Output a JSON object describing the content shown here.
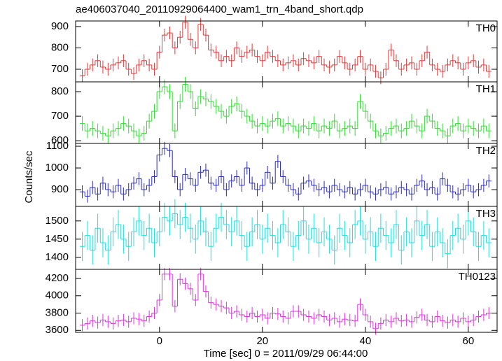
{
  "chart_data": {
    "type": "step",
    "title": "ae406037040_20110929064400_wam1_trn_4band_short.qdp",
    "x_label": "Time [sec] 0 = 2011/09/29 06:44:00",
    "y_label": "Counts/sec",
    "x": [
      -15,
      -14,
      -13,
      -12,
      -11,
      -10,
      -9,
      -8,
      -7,
      -6,
      -5,
      -4,
      -3,
      -2,
      -1,
      0,
      1,
      2,
      3,
      4,
      5,
      6,
      7,
      8,
      9,
      10,
      11,
      12,
      13,
      14,
      15,
      16,
      17,
      18,
      19,
      20,
      21,
      22,
      23,
      24,
      25,
      26,
      27,
      28,
      29,
      30,
      31,
      32,
      33,
      34,
      35,
      36,
      37,
      38,
      39,
      40,
      41,
      42,
      43,
      44,
      45,
      46,
      47,
      48,
      49,
      50,
      51,
      52,
      53,
      54,
      55,
      56,
      57,
      58,
      59,
      60,
      61,
      62,
      63,
      64
    ],
    "xlim": [
      -16.3,
      65.6
    ],
    "xticks": [
      0,
      20,
      40,
      60
    ],
    "panels": [
      {
        "name": "TH0",
        "color": "#e03a3a",
        "error": 30,
        "ylim": [
          641,
          926
        ],
        "yticks": [
          700,
          800,
          900
        ],
        "values": [
          670,
          700,
          720,
          740,
          710,
          700,
          720,
          730,
          740,
          700,
          680,
          720,
          740,
          720,
          700,
          780,
          860,
          870,
          800,
          850,
          920,
          840,
          800,
          910,
          860,
          790,
          780,
          740,
          760,
          740,
          800,
          760,
          780,
          790,
          760,
          740,
          780,
          760,
          740,
          720,
          730,
          740,
          720,
          750,
          740,
          730,
          760,
          720,
          710,
          720,
          760,
          730,
          700,
          720,
          760,
          700,
          720,
          690,
          660,
          700,
          790,
          740,
          700,
          720,
          730,
          700,
          740,
          780,
          720,
          700,
          690,
          720,
          740,
          730,
          700,
          730,
          740,
          710,
          720,
          690
        ]
      },
      {
        "name": "TH1",
        "color": "#33dd33",
        "error": 30,
        "ylim": [
          589,
          840
        ],
        "yticks": [
          600,
          700,
          800
        ],
        "values": [
          670,
          640,
          650,
          640,
          630,
          620,
          640,
          650,
          670,
          660,
          640,
          620,
          630,
          680,
          720,
          800,
          820,
          800,
          640,
          760,
          830,
          800,
          730,
          780,
          770,
          760,
          740,
          720,
          700,
          740,
          750,
          720,
          700,
          680,
          660,
          670,
          660,
          680,
          690,
          660,
          670,
          660,
          640,
          660,
          650,
          670,
          640,
          660,
          650,
          680,
          640,
          650,
          660,
          650,
          760,
          720,
          680,
          640,
          620,
          630,
          650,
          660,
          640,
          650,
          680,
          660,
          640,
          700,
          680,
          650,
          640,
          620,
          660,
          670,
          640,
          660,
          650,
          640,
          660,
          640
        ]
      },
      {
        "name": "TH2",
        "color": "#2a2ac0",
        "error": 30,
        "ylim": [
          823,
          1113
        ],
        "yticks": [
          900,
          1000,
          1100
        ],
        "values": [
          890,
          870,
          910,
          880,
          930,
          900,
          890,
          920,
          880,
          900,
          930,
          950,
          900,
          920,
          960,
          1060,
          1090,
          1080,
          960,
          900,
          970,
          950,
          920,
          980,
          990,
          930,
          920,
          960,
          900,
          940,
          960,
          920,
          1000,
          930,
          900,
          920,
          980,
          930,
          1030,
          960,
          920,
          900,
          880,
          930,
          940,
          920,
          900,
          910,
          890,
          920,
          900,
          890,
          910,
          880,
          900,
          920,
          890,
          880,
          900,
          910,
          880,
          890,
          910,
          900,
          880,
          920,
          940,
          900,
          910,
          880,
          950,
          920,
          890,
          880,
          900,
          920,
          890,
          900,
          920,
          940
        ]
      },
      {
        "name": "TH3",
        "color": "#22dddd",
        "error": 40,
        "ylim": [
          1367,
          1540
        ],
        "yticks": [
          1400,
          1450,
          1500
        ],
        "values": [
          1430,
          1460,
          1420,
          1480,
          1440,
          1420,
          1470,
          1490,
          1450,
          1430,
          1470,
          1500,
          1460,
          1480,
          1440,
          1470,
          1510,
          1500,
          1520,
          1490,
          1510,
          1480,
          1450,
          1500,
          1470,
          1430,
          1480,
          1510,
          1490,
          1470,
          1500,
          1460,
          1430,
          1470,
          1490,
          1450,
          1480,
          1460,
          1440,
          1490,
          1470,
          1430,
          1460,
          1500,
          1450,
          1480,
          1440,
          1470,
          1450,
          1420,
          1480,
          1460,
          1440,
          1490,
          1500,
          1450,
          1470,
          1430,
          1480,
          1460,
          1440,
          1490,
          1420,
          1470,
          1440,
          1500,
          1460,
          1490,
          1430,
          1470,
          1440,
          1410,
          1460,
          1480,
          1450,
          1500,
          1470,
          1430,
          1460,
          1440
        ]
      },
      {
        "name": "TH0123",
        "color": "#dd33dd",
        "error": 70,
        "ylim": [
          3578,
          4305
        ],
        "yticks": [
          3600,
          3800,
          4000,
          4200
        ],
        "values": [
          3660,
          3680,
          3710,
          3690,
          3720,
          3700,
          3680,
          3710,
          3720,
          3700,
          3740,
          3730,
          3710,
          3760,
          3800,
          3950,
          4250,
          4250,
          3880,
          4190,
          4140,
          4080,
          3950,
          4250,
          4050,
          3920,
          3900,
          3880,
          3860,
          3800,
          3820,
          3780,
          3760,
          3800,
          3760,
          3780,
          3740,
          3800,
          3790,
          3760,
          3740,
          3820,
          3820,
          3780,
          3760,
          3740,
          3780,
          3760,
          3720,
          3740,
          3700,
          3730,
          3720,
          3710,
          3900,
          3780,
          3700,
          3620,
          3680,
          3720,
          3700,
          3740,
          3710,
          3720,
          3700,
          3750,
          3780,
          3720,
          3700,
          3760,
          3710,
          3690,
          3720,
          3700,
          3740,
          3700,
          3720,
          3760,
          3780,
          3800
        ]
      }
    ]
  }
}
